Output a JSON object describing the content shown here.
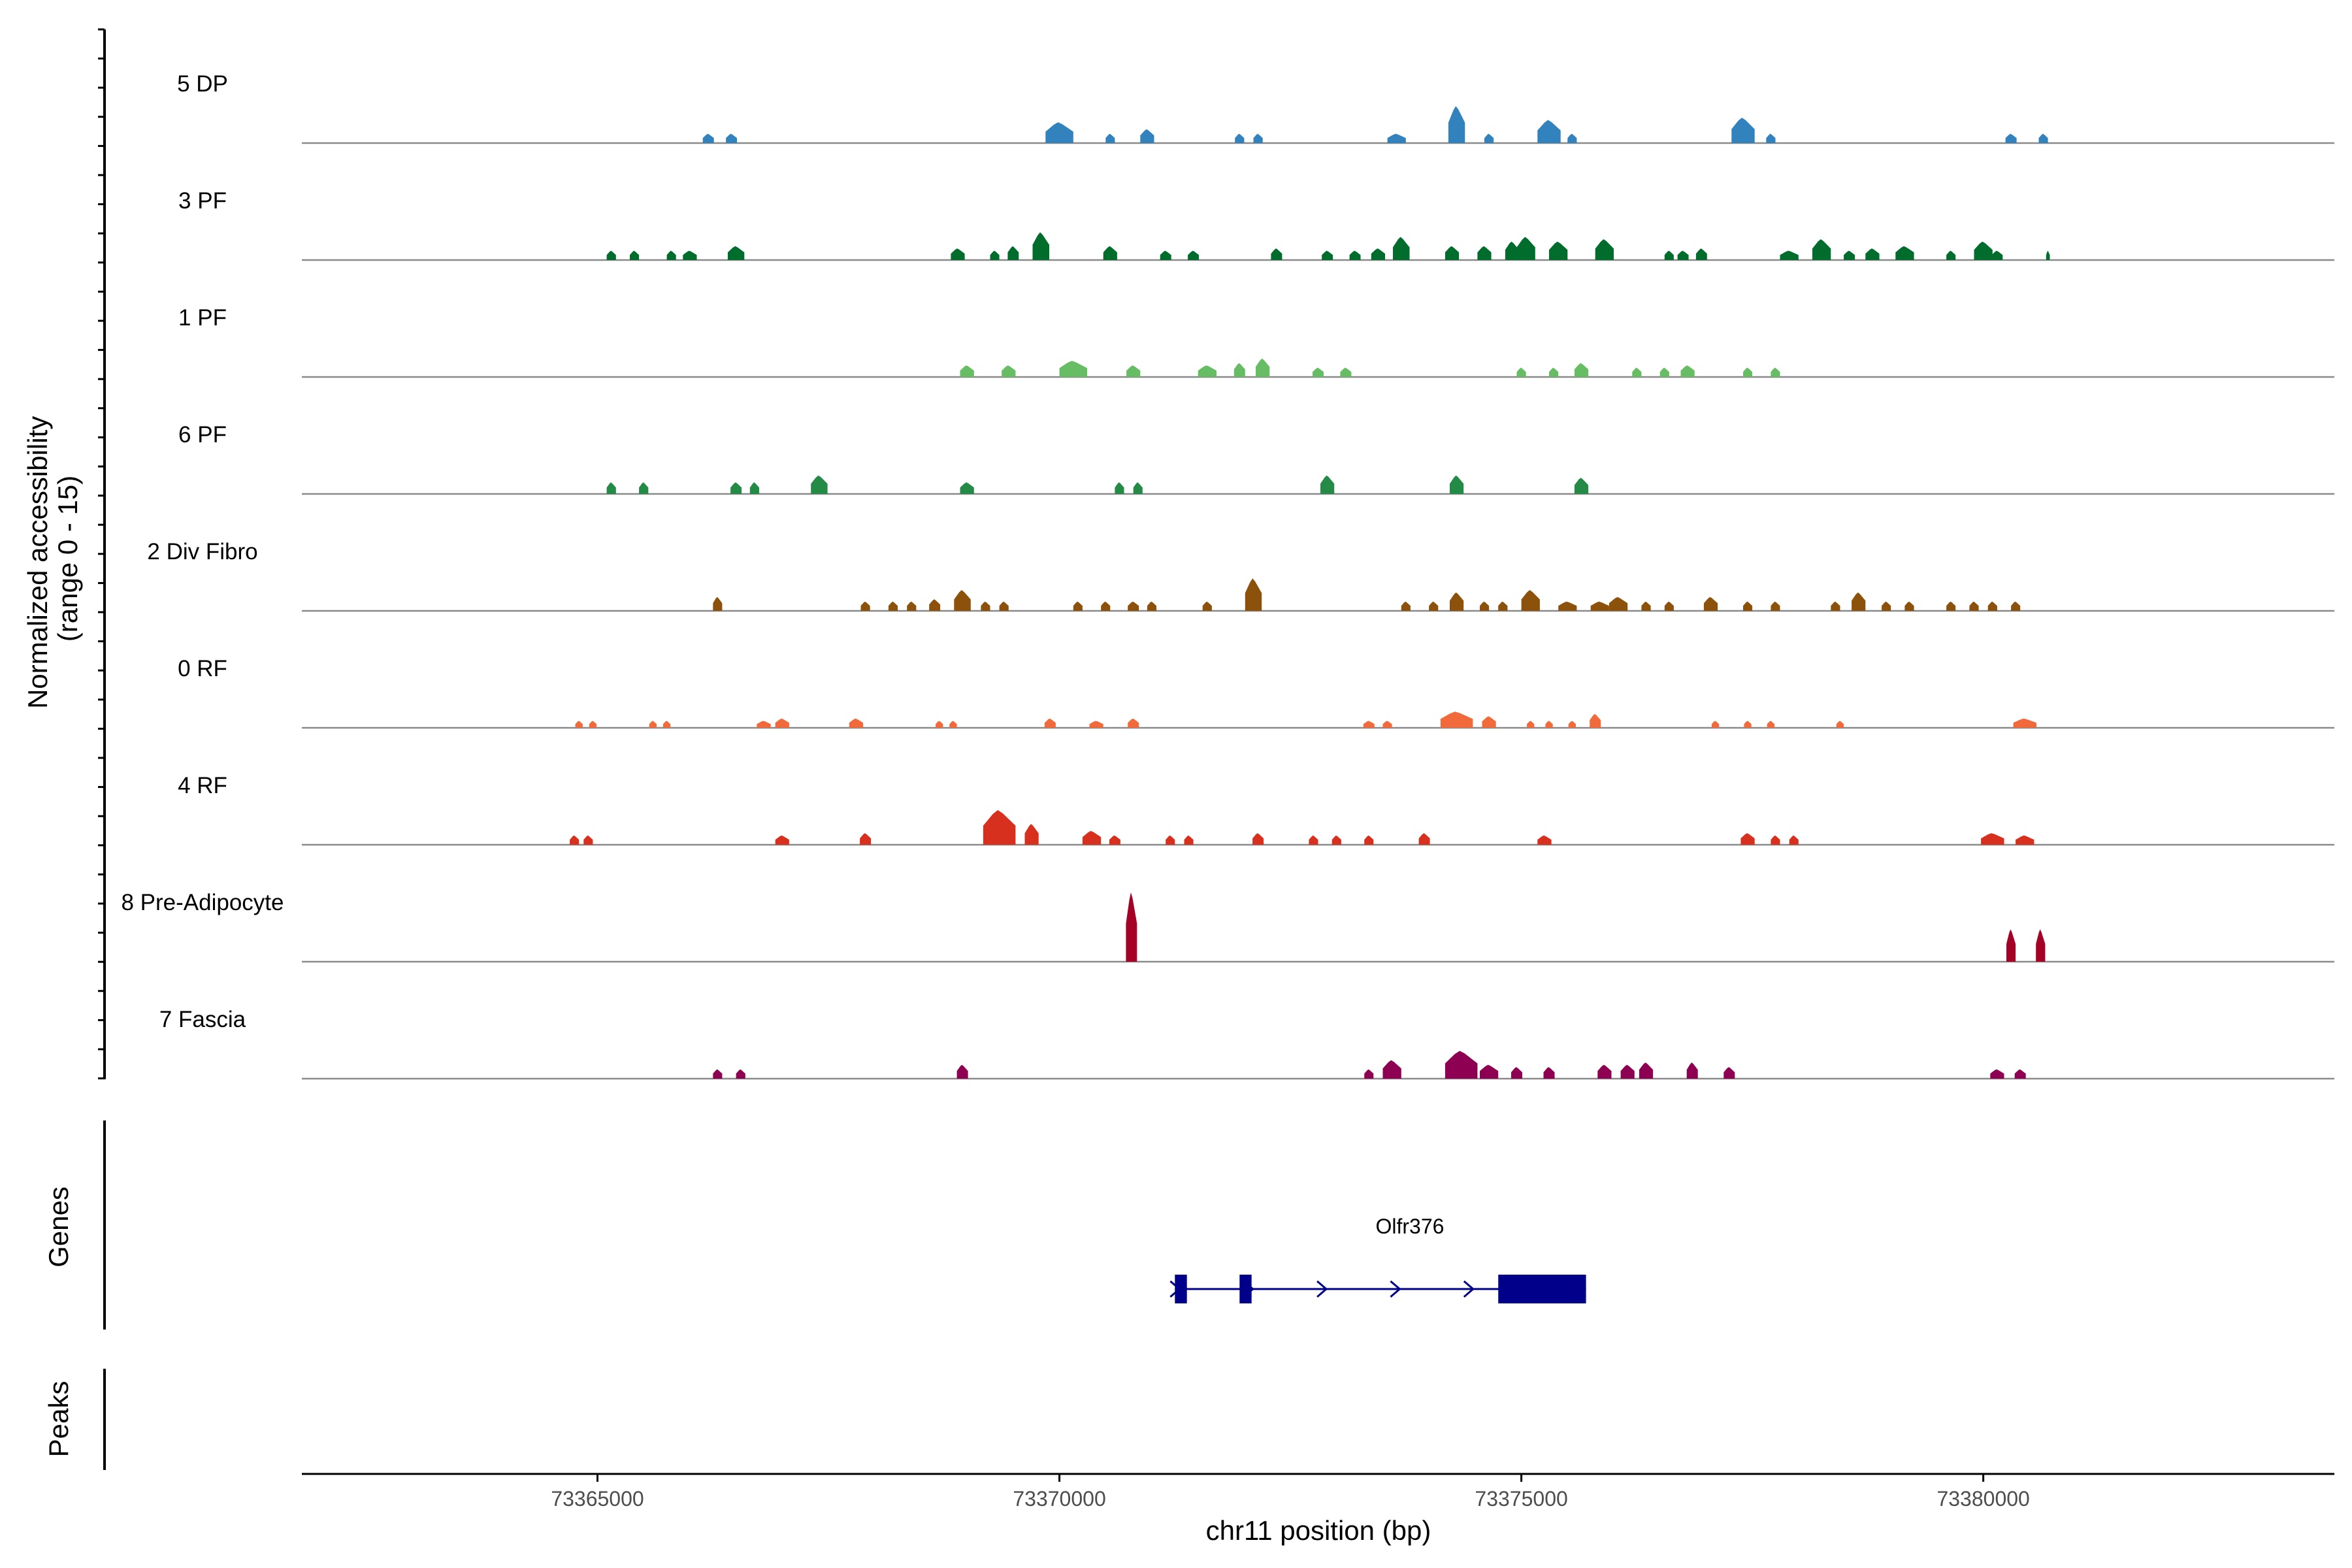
{
  "chart_data": {
    "type": "coverage",
    "chromosome": "chr11",
    "xlim": [
      73361800,
      73383800
    ],
    "xlabel": "chr11 position (bp)",
    "ylabel_line1": "Normalized accessibility",
    "ylabel_line2": "(range 0 - 15)",
    "ylim": [
      0,
      15
    ],
    "x_ticks": [
      {
        "value": 73365000,
        "label": "73365000"
      },
      {
        "value": 73370000,
        "label": "73370000"
      },
      {
        "value": 73375000,
        "label": "73375000"
      },
      {
        "value": 73380000,
        "label": "73380000"
      }
    ],
    "tracks": [
      {
        "label": "5 DP",
        "color": "#3182bd",
        "peaks": [
          [
            73366200,
            120,
            2.0
          ],
          [
            73366450,
            120,
            2.0
          ],
          [
            73370000,
            300,
            4.5
          ],
          [
            73370550,
            100,
            2.0
          ],
          [
            73370950,
            150,
            3.0
          ],
          [
            73371950,
            100,
            2.0
          ],
          [
            73372150,
            100,
            2.0
          ],
          [
            73373650,
            200,
            2.0
          ],
          [
            73374300,
            180,
            8.0
          ],
          [
            73374650,
            100,
            2.0
          ],
          [
            73375300,
            250,
            5.0
          ],
          [
            73375550,
            100,
            2.0
          ],
          [
            73377400,
            250,
            5.5
          ],
          [
            73377700,
            100,
            2.0
          ],
          [
            73380300,
            120,
            2.0
          ],
          [
            73380650,
            100,
            2.0
          ]
        ]
      },
      {
        "label": "3 PF",
        "color": "#006d2c",
        "peaks": [
          [
            73365150,
            100,
            2.0
          ],
          [
            73365400,
            100,
            2.0
          ],
          [
            73365800,
            100,
            2.0
          ],
          [
            73366000,
            150,
            2.0
          ],
          [
            73366500,
            180,
            3.0
          ],
          [
            73368900,
            150,
            2.5
          ],
          [
            73369300,
            100,
            2.0
          ],
          [
            73369500,
            120,
            3.0
          ],
          [
            73369800,
            180,
            6.0
          ],
          [
            73370550,
            150,
            3.0
          ],
          [
            73371150,
            120,
            2.0
          ],
          [
            73371450,
            120,
            2.0
          ],
          [
            73372350,
            120,
            2.5
          ],
          [
            73372900,
            120,
            2.0
          ],
          [
            73373200,
            120,
            2.0
          ],
          [
            73373450,
            150,
            2.5
          ],
          [
            73373700,
            180,
            5.0
          ],
          [
            73374250,
            150,
            3.0
          ],
          [
            73374600,
            150,
            3.0
          ],
          [
            73374900,
            150,
            4.0
          ],
          [
            73375050,
            200,
            5.0
          ],
          [
            73375400,
            200,
            4.0
          ],
          [
            73375900,
            200,
            4.5
          ],
          [
            73376600,
            100,
            2.0
          ],
          [
            73376750,
            120,
            2.0
          ],
          [
            73376950,
            120,
            2.5
          ],
          [
            73377900,
            200,
            2.0
          ],
          [
            73378250,
            200,
            4.5
          ],
          [
            73378550,
            120,
            2.0
          ],
          [
            73378800,
            150,
            2.5
          ],
          [
            73379150,
            200,
            3.0
          ],
          [
            73379650,
            100,
            2.0
          ],
          [
            73380000,
            200,
            4.0
          ],
          [
            73380150,
            120,
            2.0
          ],
          [
            73380700,
            40,
            2.0
          ]
        ]
      },
      {
        "label": "1 PF",
        "color": "#66bd63",
        "peaks": [
          [
            73369000,
            150,
            2.5
          ],
          [
            73369450,
            150,
            2.5
          ],
          [
            73370150,
            300,
            3.5
          ],
          [
            73370800,
            150,
            2.5
          ],
          [
            73371600,
            200,
            2.5
          ],
          [
            73371950,
            120,
            3.0
          ],
          [
            73372200,
            150,
            4.0
          ],
          [
            73372800,
            120,
            2.0
          ],
          [
            73373100,
            120,
            2.0
          ],
          [
            73375000,
            100,
            2.0
          ],
          [
            73375350,
            100,
            2.0
          ],
          [
            73375650,
            150,
            3.0
          ],
          [
            73376250,
            100,
            2.0
          ],
          [
            73376550,
            100,
            2.0
          ],
          [
            73376800,
            150,
            2.5
          ],
          [
            73377450,
            100,
            2.0
          ],
          [
            73377750,
            100,
            2.0
          ]
        ]
      },
      {
        "label": "6 PF",
        "color": "#238b45",
        "peaks": [
          [
            73365150,
            100,
            2.5
          ],
          [
            73365500,
            100,
            2.5
          ],
          [
            73366500,
            120,
            2.5
          ],
          [
            73366700,
            100,
            2.5
          ],
          [
            73367400,
            180,
            4.0
          ],
          [
            73369000,
            150,
            2.5
          ],
          [
            73370650,
            100,
            2.5
          ],
          [
            73370850,
            100,
            2.5
          ],
          [
            73372900,
            150,
            4.0
          ],
          [
            73374300,
            150,
            4.0
          ],
          [
            73375650,
            150,
            3.5
          ]
        ]
      },
      {
        "label": "2 Div Fibro",
        "color": "#8c510a",
        "peaks": [
          [
            73366300,
            100,
            3.0
          ],
          [
            73367900,
            100,
            2.0
          ],
          [
            73368200,
            100,
            2.0
          ],
          [
            73368400,
            100,
            2.0
          ],
          [
            73368650,
            120,
            2.5
          ],
          [
            73368950,
            180,
            4.5
          ],
          [
            73369200,
            100,
            2.0
          ],
          [
            73369400,
            100,
            2.0
          ],
          [
            73370200,
            100,
            2.0
          ],
          [
            73370500,
            100,
            2.0
          ],
          [
            73370800,
            120,
            2.0
          ],
          [
            73371000,
            100,
            2.0
          ],
          [
            73371600,
            100,
            2.0
          ],
          [
            73372100,
            180,
            7.0
          ],
          [
            73373750,
            100,
            2.0
          ],
          [
            73374050,
            100,
            2.0
          ],
          [
            73374300,
            150,
            4.0
          ],
          [
            73374600,
            100,
            2.0
          ],
          [
            73374800,
            100,
            2.0
          ],
          [
            73375100,
            200,
            4.5
          ],
          [
            73375500,
            200,
            2.0
          ],
          [
            73375850,
            200,
            2.0
          ],
          [
            73376050,
            200,
            3.0
          ],
          [
            73376350,
            100,
            2.0
          ],
          [
            73376600,
            100,
            2.0
          ],
          [
            73377050,
            150,
            3.0
          ],
          [
            73377450,
            100,
            2.0
          ],
          [
            73377750,
            100,
            2.0
          ],
          [
            73378400,
            100,
            2.0
          ],
          [
            73378650,
            150,
            4.0
          ],
          [
            73378950,
            100,
            2.0
          ],
          [
            73379200,
            100,
            2.0
          ],
          [
            73379650,
            100,
            2.0
          ],
          [
            73379900,
            100,
            2.0
          ],
          [
            73380100,
            100,
            2.0
          ],
          [
            73380350,
            100,
            2.0
          ]
        ]
      },
      {
        "label": "0 RF",
        "color": "#f16a3c",
        "peaks": [
          [
            73364800,
            80,
            1.5
          ],
          [
            73364950,
            80,
            1.5
          ],
          [
            73365600,
            80,
            1.5
          ],
          [
            73365750,
            80,
            1.5
          ],
          [
            73366800,
            150,
            1.5
          ],
          [
            73367000,
            150,
            2.0
          ],
          [
            73367800,
            150,
            2.0
          ],
          [
            73368700,
            80,
            1.5
          ],
          [
            73368850,
            80,
            1.5
          ],
          [
            73369900,
            120,
            2.0
          ],
          [
            73370400,
            150,
            1.5
          ],
          [
            73370800,
            120,
            2.0
          ],
          [
            73373350,
            120,
            1.5
          ],
          [
            73373550,
            100,
            1.5
          ],
          [
            73374300,
            350,
            3.5
          ],
          [
            73374650,
            150,
            2.5
          ],
          [
            73375100,
            80,
            1.5
          ],
          [
            73375300,
            80,
            1.5
          ],
          [
            73375550,
            80,
            1.5
          ],
          [
            73375800,
            120,
            3.0
          ],
          [
            73377100,
            80,
            1.5
          ],
          [
            73377450,
            80,
            1.5
          ],
          [
            73377700,
            80,
            1.5
          ],
          [
            73378450,
            80,
            1.5
          ],
          [
            73380450,
            250,
            2.0
          ]
        ]
      },
      {
        "label": "4 RF",
        "color": "#d7301f",
        "peaks": [
          [
            73364750,
            100,
            2.0
          ],
          [
            73364900,
            100,
            2.0
          ],
          [
            73367000,
            150,
            2.0
          ],
          [
            73367900,
            120,
            2.5
          ],
          [
            73369350,
            350,
            7.5
          ],
          [
            73369700,
            150,
            4.5
          ],
          [
            73370350,
            200,
            3.0
          ],
          [
            73370600,
            120,
            2.0
          ],
          [
            73371200,
            100,
            2.0
          ],
          [
            73371400,
            100,
            2.0
          ],
          [
            73372150,
            120,
            2.5
          ],
          [
            73372750,
            100,
            2.0
          ],
          [
            73373000,
            100,
            2.0
          ],
          [
            73373350,
            100,
            2.0
          ],
          [
            73373950,
            120,
            2.5
          ],
          [
            73375250,
            150,
            2.0
          ],
          [
            73377450,
            150,
            2.5
          ],
          [
            73377750,
            100,
            2.0
          ],
          [
            73377950,
            100,
            2.0
          ],
          [
            73380100,
            250,
            2.5
          ],
          [
            73380450,
            200,
            2.0
          ]
        ]
      },
      {
        "label": "8 Pre-Adipocyte",
        "color": "#a50026",
        "peaks": [
          [
            73370780,
            120,
            15.0
          ],
          [
            73380300,
            100,
            7.0
          ],
          [
            73380620,
            100,
            7.0
          ]
        ]
      },
      {
        "label": "7 Fascia",
        "color": "#8e0152",
        "peaks": [
          [
            73366300,
            100,
            2.0
          ],
          [
            73366550,
            100,
            2.0
          ],
          [
            73368950,
            120,
            3.0
          ],
          [
            73373350,
            100,
            2.0
          ],
          [
            73373600,
            200,
            4.0
          ],
          [
            73374350,
            350,
            6.0
          ],
          [
            73374650,
            200,
            3.0
          ],
          [
            73374950,
            120,
            2.5
          ],
          [
            73375300,
            120,
            2.5
          ],
          [
            73375900,
            150,
            3.0
          ],
          [
            73376150,
            150,
            3.0
          ],
          [
            73376350,
            150,
            3.5
          ],
          [
            73376850,
            120,
            3.5
          ],
          [
            73377250,
            120,
            2.5
          ],
          [
            73380150,
            150,
            2.0
          ],
          [
            73380400,
            120,
            2.0
          ]
        ]
      }
    ],
    "genes": [
      {
        "name": "Olfr376",
        "color": "#00008b",
        "start": 73371250,
        "end": 73375700,
        "strand": "+",
        "exons": [
          [
            73371250,
            73371380
          ],
          [
            73371950,
            73372080
          ],
          [
            73374750,
            73375700
          ]
        ]
      }
    ],
    "panel_titles": {
      "genes": "Genes",
      "peaks": "Peaks"
    }
  }
}
